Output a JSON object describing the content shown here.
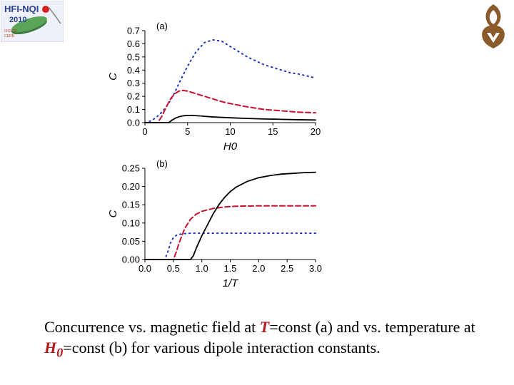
{
  "logo": {
    "line1": "HFI-NQI",
    "line2": "2010",
    "line3": "ISOLDE",
    "line4": "CERN",
    "accent": "#2a3f8f"
  },
  "chart_data": [
    {
      "type": "line",
      "panel": "(a)",
      "xlabel": "H0",
      "ylabel": "C",
      "xlim": [
        0,
        20
      ],
      "ylim": [
        0,
        0.7
      ],
      "xticks": [
        "0",
        "5",
        "10",
        "15",
        "20"
      ],
      "yticks": [
        "0.0",
        "0.1",
        "0.2",
        "0.3",
        "0.4",
        "0.5",
        "0.6",
        "0.7"
      ],
      "series": [
        {
          "style": "dotted",
          "color": "#1f35b4",
          "x": [
            0,
            0.5,
            1,
            1.5,
            2,
            2.5,
            3,
            3.5,
            4,
            5,
            6,
            7,
            8,
            9,
            10,
            11,
            12,
            13,
            14,
            15,
            16,
            17,
            18,
            19,
            20
          ],
          "y": [
            0,
            0.008,
            0.025,
            0.05,
            0.08,
            0.12,
            0.17,
            0.23,
            0.3,
            0.43,
            0.54,
            0.61,
            0.63,
            0.62,
            0.58,
            0.54,
            0.5,
            0.47,
            0.44,
            0.42,
            0.4,
            0.38,
            0.37,
            0.355,
            0.34
          ]
        },
        {
          "style": "dashed",
          "color": "#c8102e",
          "x": [
            0,
            1.5,
            2,
            2.5,
            3,
            3.5,
            4,
            4.5,
            5,
            6,
            7,
            8,
            9,
            10,
            12,
            14,
            16,
            18,
            20
          ],
          "y": [
            0,
            0,
            0.05,
            0.12,
            0.18,
            0.22,
            0.24,
            0.245,
            0.24,
            0.22,
            0.2,
            0.18,
            0.16,
            0.145,
            0.12,
            0.1,
            0.09,
            0.08,
            0.075
          ]
        },
        {
          "style": "solid",
          "color": "#000000",
          "x": [
            0,
            2.8,
            3.2,
            3.6,
            4,
            4.5,
            5,
            5.5,
            6,
            7,
            8,
            10,
            12,
            14,
            16,
            18,
            20
          ],
          "y": [
            0,
            0,
            0.02,
            0.035,
            0.045,
            0.052,
            0.055,
            0.055,
            0.053,
            0.048,
            0.043,
            0.037,
            0.032,
            0.028,
            0.025,
            0.022,
            0.02
          ]
        }
      ]
    },
    {
      "type": "line",
      "panel": "(b)",
      "xlabel": "1/T",
      "ylabel": "C",
      "xlim": [
        0,
        3
      ],
      "ylim": [
        0,
        0.25
      ],
      "xticks": [
        "0.0",
        "0.5",
        "1.0",
        "1.5",
        "2.0",
        "2.5",
        "3.0"
      ],
      "yticks": [
        "0.00",
        "0.05",
        "0.10",
        "0.15",
        "0.20",
        "0.25"
      ],
      "series": [
        {
          "style": "dotted",
          "color": "#1f35b4",
          "x": [
            0,
            0.35,
            0.4,
            0.45,
            0.5,
            0.55,
            0.6,
            0.7,
            0.8,
            1,
            1.5,
            2,
            2.5,
            3
          ],
          "y": [
            0,
            0,
            0.02,
            0.045,
            0.06,
            0.066,
            0.069,
            0.071,
            0.072,
            0.072,
            0.072,
            0.072,
            0.072,
            0.072
          ]
        },
        {
          "style": "dashed",
          "color": "#c8102e",
          "x": [
            0,
            0.5,
            0.55,
            0.6,
            0.7,
            0.8,
            0.9,
            1,
            1.2,
            1.4,
            1.6,
            2,
            2.5,
            3
          ],
          "y": [
            0,
            0,
            0.02,
            0.045,
            0.085,
            0.11,
            0.124,
            0.132,
            0.14,
            0.144,
            0.146,
            0.147,
            0.147,
            0.147
          ]
        },
        {
          "style": "solid",
          "color": "#000000",
          "x": [
            0,
            0.8,
            0.85,
            0.9,
            1,
            1.1,
            1.2,
            1.3,
            1.4,
            1.5,
            1.6,
            1.8,
            2,
            2.2,
            2.4,
            2.6,
            2.8,
            3
          ],
          "y": [
            0,
            0,
            0.01,
            0.03,
            0.065,
            0.095,
            0.125,
            0.15,
            0.17,
            0.186,
            0.198,
            0.214,
            0.224,
            0.23,
            0.234,
            0.236,
            0.238,
            0.239
          ]
        }
      ]
    }
  ],
  "caption": {
    "part1": "Concurrence vs. magnetic field at ",
    "var1": "T",
    "part2": "=const (a) and vs. temperature at ",
    "var2": "H",
    "var2sub": "0",
    "part3": "=const (b) for various dipole interaction constants."
  }
}
